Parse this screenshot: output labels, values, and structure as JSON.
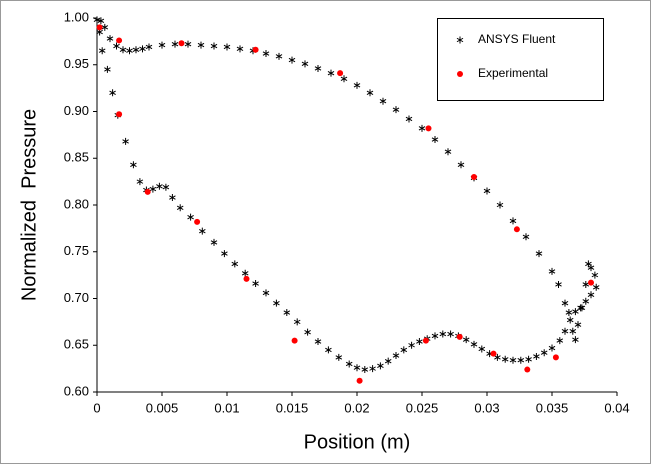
{
  "chart_data": {
    "type": "scatter",
    "xlabel": "Position (m)",
    "ylabel": "Normalized  Pressure",
    "xlim": [
      0,
      0.04
    ],
    "ylim": [
      0.6,
      1.0
    ],
    "xticks": [
      0,
      0.005,
      0.01,
      0.015,
      0.02,
      0.025,
      0.03,
      0.035,
      0.04
    ],
    "yticks": [
      {
        "value": 0.6,
        "label": "0.60"
      },
      0.65,
      {
        "value": 0.7,
        "label": "0.70"
      },
      0.75,
      {
        "value": 0.8,
        "label": "0.80"
      },
      0.85,
      {
        "value": 0.9,
        "label": "0.90"
      },
      0.95,
      {
        "value": 1.0,
        "label": "1.00"
      }
    ],
    "grid": false,
    "legend": "upper right",
    "series": [
      {
        "name": "ANSYS Fluent",
        "color": "#000000",
        "marker": "asterisk",
        "x": [
          0,
          0.0003,
          0.0006,
          0.001,
          0.0015,
          0.002,
          0.0025,
          0.003,
          0.0035,
          0.004,
          0.005,
          0.006,
          0.007,
          0.008,
          0.009,
          0.01,
          0.011,
          0.012,
          0.013,
          0.014,
          0.015,
          0.016,
          0.017,
          0.018,
          0.019,
          0.02,
          0.021,
          0.022,
          0.023,
          0.024,
          0.025,
          0.026,
          0.027,
          0.028,
          0.029,
          0.03,
          0.031,
          0.032,
          0.033,
          0.034,
          0.035,
          0.0355,
          0.036,
          0.0363,
          0.0366,
          0.0368,
          0.037,
          0.0373,
          0.0376,
          0.0378,
          0.038,
          0.0383,
          0.0002,
          0.0004,
          0.0008,
          0.0012,
          0.0016,
          0.0022,
          0.0028,
          0.0033,
          0.0038,
          0.0043,
          0.0048,
          0.0053,
          0.0058,
          0.0064,
          0.0072,
          0.0081,
          0.009,
          0.0098,
          0.0106,
          0.0114,
          0.0122,
          0.013,
          0.0138,
          0.0146,
          0.0154,
          0.0162,
          0.017,
          0.0178,
          0.0186,
          0.0194,
          0.02,
          0.0206,
          0.0212,
          0.0218,
          0.0224,
          0.023,
          0.0236,
          0.0242,
          0.0248,
          0.0254,
          0.026,
          0.0266,
          0.0272,
          0.0278,
          0.0284,
          0.029,
          0.0296,
          0.0302,
          0.0308,
          0.0314,
          0.032,
          0.0326,
          0.0332,
          0.0338,
          0.0344,
          0.035,
          0.0356,
          0.036,
          0.0364,
          0.0368,
          0.0372,
          0.0376,
          0.038,
          0.0384
        ],
        "values": [
          0.998,
          0.997,
          0.99,
          0.978,
          0.97,
          0.966,
          0.965,
          0.966,
          0.967,
          0.969,
          0.971,
          0.972,
          0.972,
          0.971,
          0.97,
          0.969,
          0.967,
          0.965,
          0.962,
          0.959,
          0.955,
          0.951,
          0.946,
          0.941,
          0.935,
          0.928,
          0.92,
          0.911,
          0.902,
          0.892,
          0.882,
          0.87,
          0.857,
          0.843,
          0.829,
          0.815,
          0.8,
          0.783,
          0.766,
          0.748,
          0.729,
          0.715,
          0.695,
          0.685,
          0.665,
          0.656,
          0.672,
          0.69,
          0.715,
          0.737,
          0.733,
          0.725,
          0.985,
          0.965,
          0.945,
          0.92,
          0.896,
          0.868,
          0.843,
          0.825,
          0.816,
          0.817,
          0.82,
          0.819,
          0.808,
          0.797,
          0.787,
          0.772,
          0.76,
          0.748,
          0.737,
          0.727,
          0.716,
          0.706,
          0.695,
          0.685,
          0.675,
          0.664,
          0.654,
          0.645,
          0.637,
          0.63,
          0.626,
          0.624,
          0.625,
          0.628,
          0.633,
          0.639,
          0.645,
          0.65,
          0.654,
          0.657,
          0.66,
          0.662,
          0.662,
          0.66,
          0.656,
          0.651,
          0.646,
          0.641,
          0.637,
          0.635,
          0.634,
          0.634,
          0.635,
          0.638,
          0.642,
          0.647,
          0.655,
          0.665,
          0.677,
          0.686,
          0.69,
          0.697,
          0.704,
          0.712
        ]
      },
      {
        "name": "Experimental",
        "color": "#ff0000",
        "marker": "dot",
        "x": [
          0.0002,
          0.0017,
          0.0065,
          0.0122,
          0.0187,
          0.0255,
          0.029,
          0.0323,
          0.038,
          0.0017,
          0.0039,
          0.0077,
          0.0115,
          0.0152,
          0.0202,
          0.0253,
          0.0279,
          0.0305,
          0.0331,
          0.0353
        ],
        "values": [
          0.99,
          0.976,
          0.973,
          0.966,
          0.941,
          0.882,
          0.83,
          0.774,
          0.717,
          0.897,
          0.814,
          0.782,
          0.721,
          0.655,
          0.612,
          0.655,
          0.659,
          0.641,
          0.624,
          0.637
        ]
      }
    ]
  }
}
